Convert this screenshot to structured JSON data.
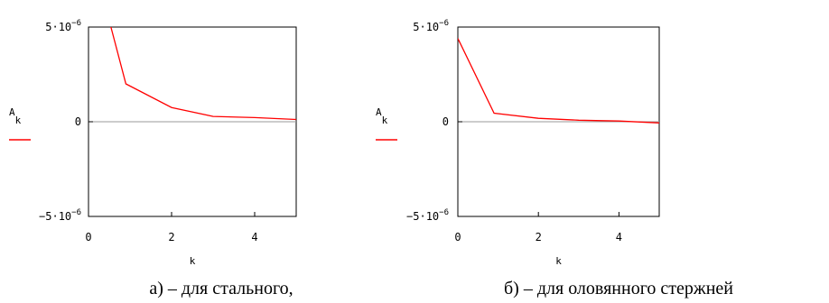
{
  "chart_data": [
    {
      "type": "line",
      "panel": "a",
      "xlabel": "k",
      "ylabel": "A",
      "ylabel_sub": "k",
      "xlim": [
        0,
        5
      ],
      "ylim": [
        -5e-06,
        5e-06
      ],
      "xticks": [
        0,
        2,
        4
      ],
      "yticks": [
        {
          "value": 5e-06,
          "base": "5·10",
          "exp": "−6"
        },
        {
          "value": 0,
          "base": "0",
          "exp": ""
        },
        {
          "value": -5e-06,
          "base": "−5·10",
          "exp": "−6"
        }
      ],
      "series": [
        {
          "color": "#ff0000",
          "x": [
            0,
            0.9,
            2,
            3,
            4,
            5
          ],
          "y": [
            9.5e-06,
            2e-06,
            7.5e-07,
            2.8e-07,
            2.2e-07,
            1.2e-07
          ]
        }
      ],
      "caption": "а) – для стального,"
    },
    {
      "type": "line",
      "panel": "b",
      "xlabel": "k",
      "ylabel": "A",
      "ylabel_sub": "k",
      "xlim": [
        0,
        5
      ],
      "ylim": [
        -5e-06,
        5e-06
      ],
      "xticks": [
        0,
        2,
        4
      ],
      "yticks": [
        {
          "value": 5e-06,
          "base": "5·10",
          "exp": "−6"
        },
        {
          "value": 0,
          "base": "0",
          "exp": ""
        },
        {
          "value": -5e-06,
          "base": "−5·10",
          "exp": "−6"
        }
      ],
      "series": [
        {
          "color": "#ff0000",
          "x": [
            0,
            0.9,
            2,
            3,
            4,
            5
          ],
          "y": [
            4.4e-06,
            4.5e-07,
            1.8e-07,
            8e-08,
            4e-08,
            -6e-08
          ]
        }
      ],
      "caption": "б) – для оловянного стержней"
    }
  ]
}
